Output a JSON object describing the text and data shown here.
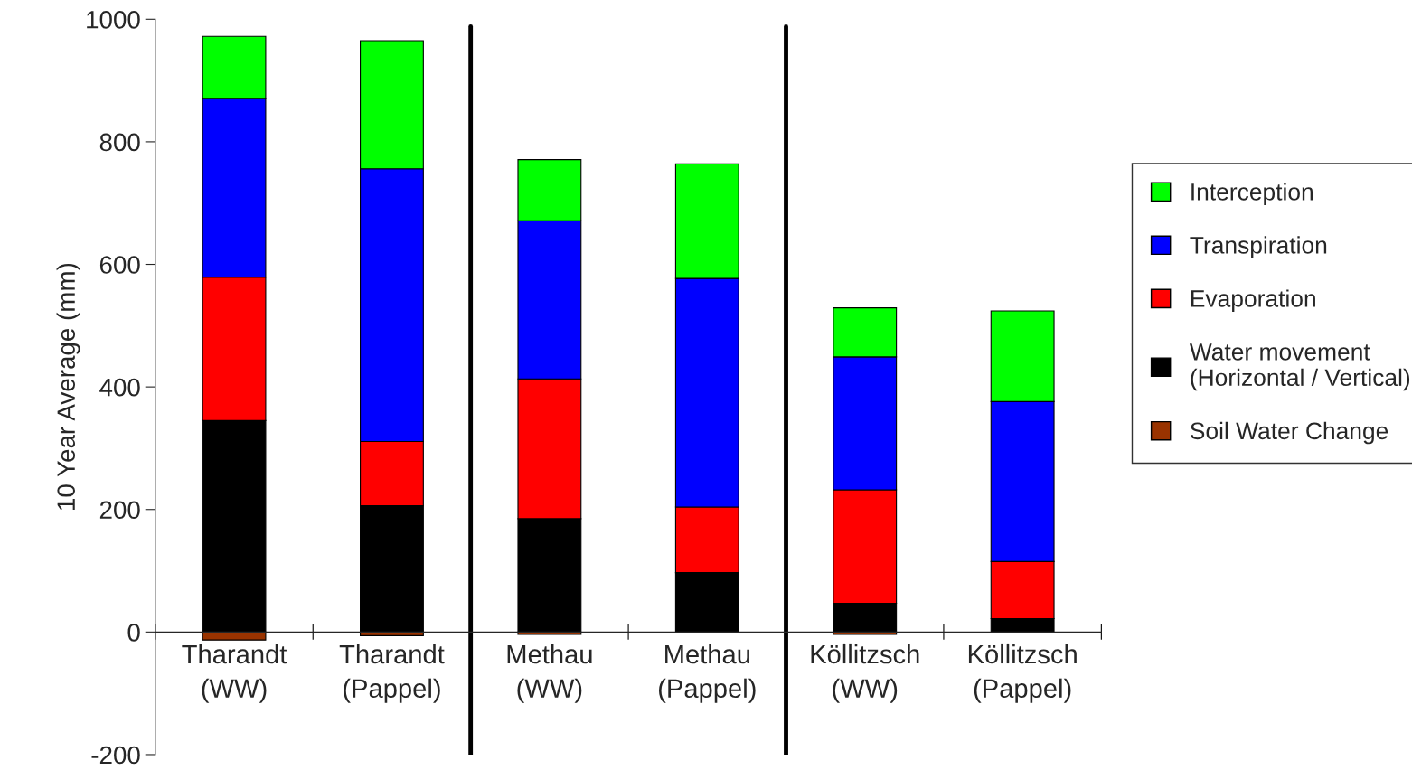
{
  "chart_data": {
    "type": "bar",
    "stacked": true,
    "ylabel": "10 Year Average (mm)",
    "categories": [
      "Tharandt\n(WW)",
      "Tharandt\n(Pappel)",
      "Methau\n(WW)",
      "Methau\n(Pappel)",
      "Köllitzsch\n(WW)",
      "Köllitzsch\n(Pappel)"
    ],
    "series": [
      {
        "name": "Soil Water Change",
        "color": "#993300",
        "values": [
          -13,
          -6,
          -4,
          0,
          -4,
          0
        ]
      },
      {
        "name": "Water movement\n(Horizontal / Vertical)",
        "color": "#000000",
        "values": [
          345,
          206,
          185,
          97,
          47,
          22
        ]
      },
      {
        "name": "Evaporation",
        "color": "#ff0000",
        "values": [
          234,
          105,
          228,
          107,
          185,
          93
        ]
      },
      {
        "name": "Transpiration",
        "color": "#0000ff",
        "values": [
          292,
          445,
          258,
          373,
          217,
          261
        ]
      },
      {
        "name": "Interception",
        "color": "#00ff00",
        "values": [
          101,
          209,
          100,
          187,
          80,
          148
        ]
      }
    ],
    "ylim": [
      -200,
      1000
    ],
    "yticks": [
      -200,
      0,
      200,
      400,
      600,
      800,
      1000
    ],
    "grid": false,
    "legend": "right"
  }
}
